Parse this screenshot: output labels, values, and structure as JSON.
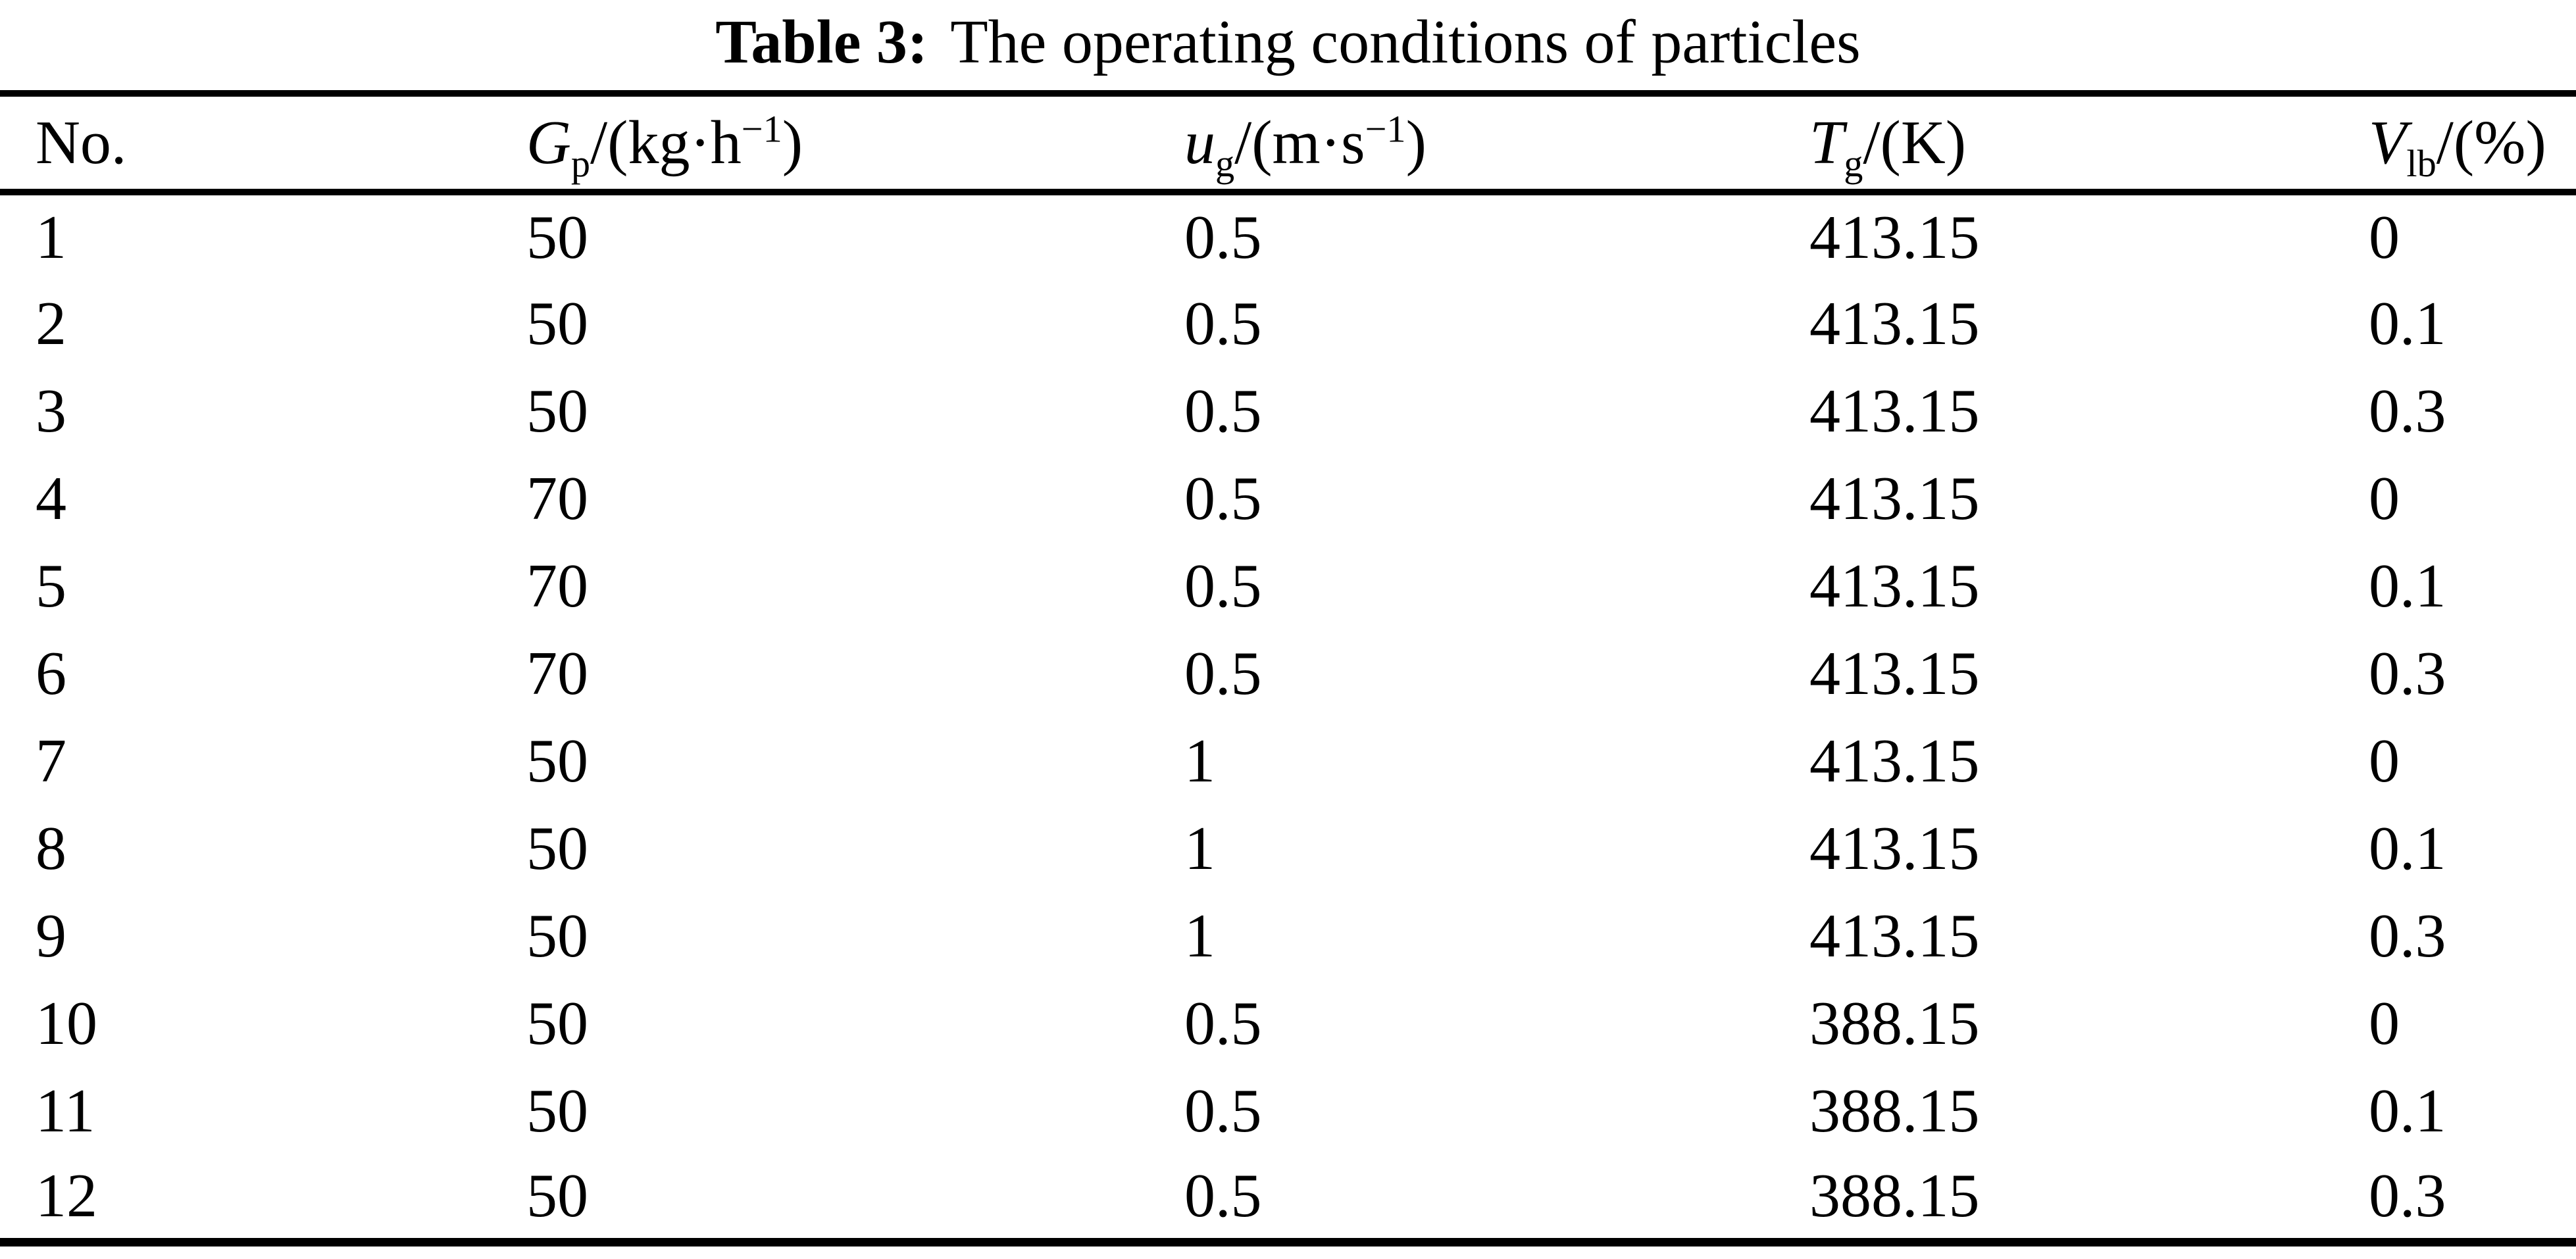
{
  "caption": {
    "label": "Table 3:",
    "text": "The operating conditions of particles"
  },
  "table": {
    "columns": [
      {
        "name": "no",
        "html": "No."
      },
      {
        "name": "particle-flow-rate",
        "html": "<i>G</i><sub>p</sub>/(kg·h<sup>−1</sup>)"
      },
      {
        "name": "gas-velocity",
        "html": "<i>u</i><sub>g</sub>/(m·s<sup>−1</sup>)"
      },
      {
        "name": "gas-temperature",
        "html": "<i>T</i><sub>g</sub>/(K)"
      },
      {
        "name": "liquid-binder-fraction",
        "html": "<i>V</i><sub>lb</sub>/(%)"
      }
    ],
    "rows": [
      [
        "1",
        "50",
        "0.5",
        "413.15",
        "0"
      ],
      [
        "2",
        "50",
        "0.5",
        "413.15",
        "0.1"
      ],
      [
        "3",
        "50",
        "0.5",
        "413.15",
        "0.3"
      ],
      [
        "4",
        "70",
        "0.5",
        "413.15",
        "0"
      ],
      [
        "5",
        "70",
        "0.5",
        "413.15",
        "0.1"
      ],
      [
        "6",
        "70",
        "0.5",
        "413.15",
        "0.3"
      ],
      [
        "7",
        "50",
        "1",
        "413.15",
        "0"
      ],
      [
        "8",
        "50",
        "1",
        "413.15",
        "0.1"
      ],
      [
        "9",
        "50",
        "1",
        "413.15",
        "0.3"
      ],
      [
        "10",
        "50",
        "0.5",
        "388.15",
        "0"
      ],
      [
        "11",
        "50",
        "0.5",
        "388.15",
        "0.1"
      ],
      [
        "12",
        "50",
        "0.5",
        "388.15",
        "0.3"
      ]
    ],
    "colors": {
      "text": "#000000",
      "background": "#ffffff",
      "rule": "#000000"
    }
  }
}
